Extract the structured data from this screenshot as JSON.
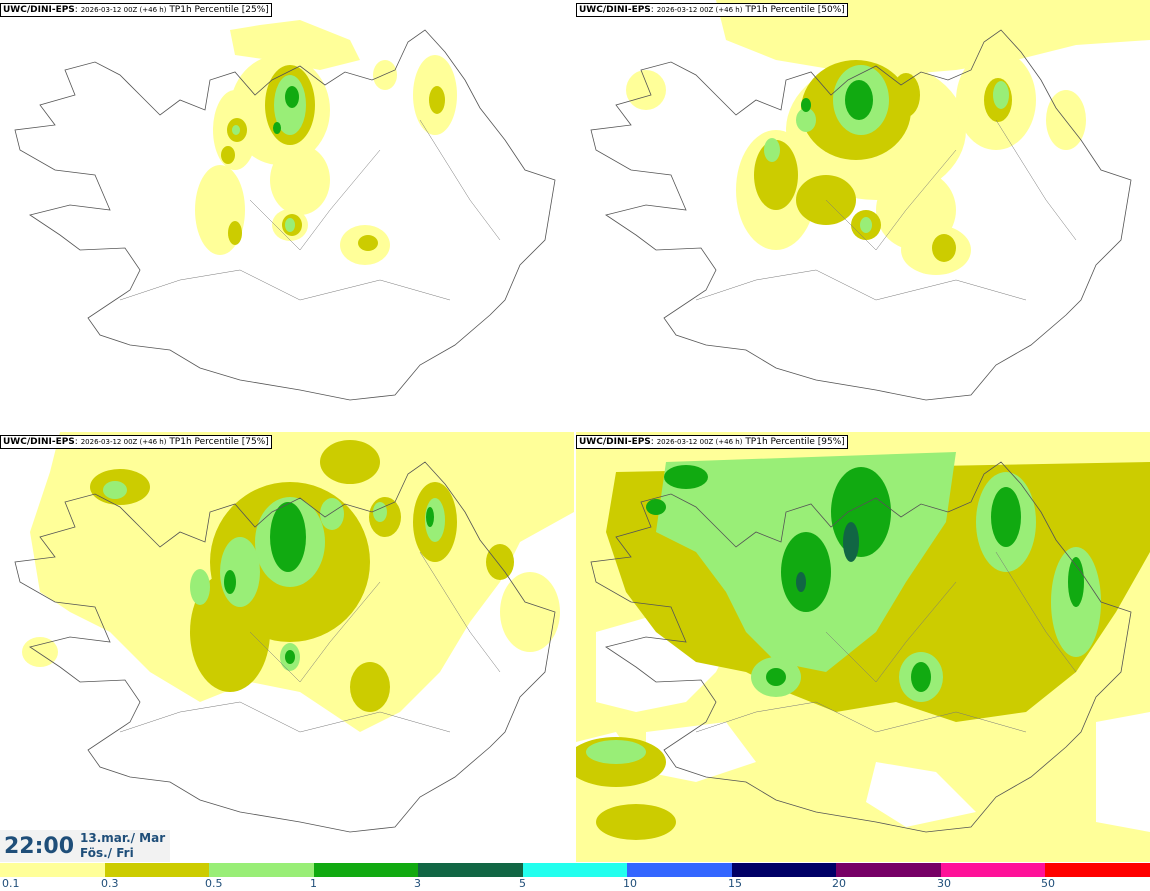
{
  "panels": [
    {
      "model": "UWC/DINI-EPS",
      "run": "2026-03-12 00Z (+46 h)",
      "field": "TP1h Percentile [25%]"
    },
    {
      "model": "UWC/DINI-EPS",
      "run": "2026-03-12 00Z (+46 h)",
      "field": "TP1h Percentile [50%]"
    },
    {
      "model": "UWC/DINI-EPS",
      "run": "2026-03-12 00Z (+46 h)",
      "field": "TP1h Percentile [75%]"
    },
    {
      "model": "UWC/DINI-EPS",
      "run": "2026-03-12 00Z (+46 h)",
      "field": "TP1h Percentile [95%]"
    }
  ],
  "valid_time": {
    "time": "22:00",
    "date": "13.mar./ Mar",
    "weekday": "Fös./ Fri"
  },
  "legend": {
    "colors": [
      "#ffff99",
      "#cccc00",
      "#99ee77",
      "#11aa11",
      "#116644",
      "#22ffee",
      "#3366ff",
      "#000066",
      "#770066",
      "#ff1199",
      "#ff0000"
    ],
    "ticks": [
      "0.1",
      "0.3",
      "0.5",
      "1",
      "3",
      "5",
      "10",
      "15",
      "20",
      "30",
      "50"
    ]
  }
}
